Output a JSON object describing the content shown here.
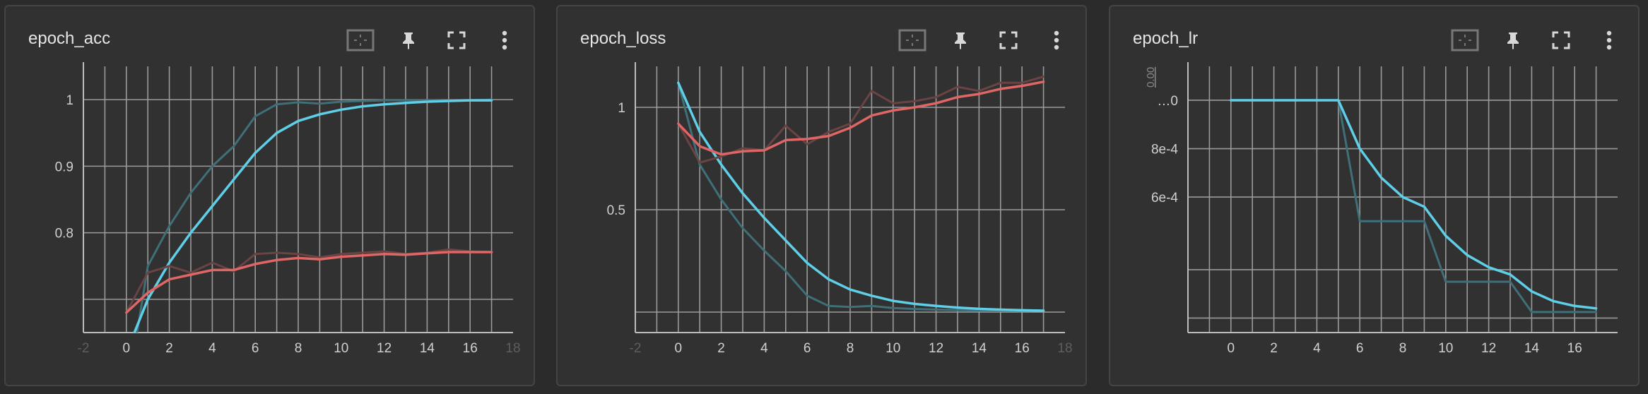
{
  "colors": {
    "background": "#2b2b2b",
    "card": "#313131",
    "grid": "#9a9a9a",
    "text": "#e6e6e6",
    "tick": "#d0d0d0",
    "train": "#5fcfe8",
    "train_raw": "#3f6f78",
    "validation": "#e06666",
    "validation_raw": "#6a4343"
  },
  "toolbar_icons": [
    "fit-domain-icon",
    "pin-icon",
    "fullscreen-icon",
    "more-vert-icon"
  ],
  "charts": [
    {
      "title": "epoch_acc",
      "chart_data": {
        "type": "line",
        "title": "epoch_acc",
        "xlabel": "",
        "ylabel": "",
        "xlim": [
          -2,
          18
        ],
        "ylim": [
          0.65,
          1.05
        ],
        "x_ticks": [
          {
            "v": -2,
            "label": "-2",
            "faint": true
          },
          {
            "v": 0,
            "label": "0"
          },
          {
            "v": 2,
            "label": "2"
          },
          {
            "v": 4,
            "label": "4"
          },
          {
            "v": 6,
            "label": "6"
          },
          {
            "v": 8,
            "label": "8"
          },
          {
            "v": 10,
            "label": "10"
          },
          {
            "v": 12,
            "label": "12"
          },
          {
            "v": 14,
            "label": "14"
          },
          {
            "v": 16,
            "label": "16"
          },
          {
            "v": 18,
            "label": "18",
            "faint": true
          }
        ],
        "y_ticks": [
          {
            "v": 0.7,
            "label": ""
          },
          {
            "v": 0.8,
            "label": "0.8"
          },
          {
            "v": 0.9,
            "label": "0.9"
          },
          {
            "v": 1.0,
            "label": "1"
          }
        ],
        "vgrid": [
          -1,
          0,
          1,
          2,
          3,
          4,
          5,
          6,
          7,
          8,
          9,
          10,
          11,
          12,
          13,
          14,
          15,
          16,
          17
        ],
        "grid": true,
        "series": [
          {
            "role": "train_raw",
            "x": [
              0,
              1,
              2,
              3,
              4,
              5,
              6,
              7,
              8,
              9,
              10,
              11,
              12,
              13,
              14,
              15,
              16,
              17
            ],
            "values": [
              0.55,
              0.75,
              0.81,
              0.86,
              0.9,
              0.93,
              0.975,
              0.993,
              0.996,
              0.994,
              0.997,
              0.998,
              0.999,
              0.999,
              0.999,
              0.999,
              0.999,
              1.0
            ]
          },
          {
            "role": "train",
            "x": [
              0,
              1,
              2,
              3,
              4,
              5,
              6,
              7,
              8,
              9,
              10,
              11,
              12,
              13,
              14,
              15,
              16,
              17
            ],
            "values": [
              0.62,
              0.7,
              0.755,
              0.8,
              0.84,
              0.88,
              0.92,
              0.95,
              0.968,
              0.978,
              0.985,
              0.99,
              0.993,
              0.995,
              0.997,
              0.998,
              0.999,
              0.999
            ]
          },
          {
            "role": "validation_raw",
            "x": [
              0,
              1,
              2,
              3,
              4,
              5,
              6,
              7,
              8,
              9,
              10,
              11,
              12,
              13,
              14,
              15,
              16,
              17
            ],
            "values": [
              0.68,
              0.74,
              0.75,
              0.74,
              0.755,
              0.742,
              0.768,
              0.77,
              0.768,
              0.763,
              0.768,
              0.77,
              0.772,
              0.768,
              0.77,
              0.775,
              0.772,
              0.771
            ]
          },
          {
            "role": "validation",
            "x": [
              0,
              1,
              2,
              3,
              4,
              5,
              6,
              7,
              8,
              9,
              10,
              11,
              12,
              13,
              14,
              15,
              16,
              17
            ],
            "values": [
              0.68,
              0.71,
              0.73,
              0.737,
              0.744,
              0.744,
              0.753,
              0.759,
              0.762,
              0.76,
              0.764,
              0.766,
              0.768,
              0.767,
              0.769,
              0.771,
              0.771,
              0.771
            ]
          }
        ]
      }
    },
    {
      "title": "epoch_loss",
      "chart_data": {
        "type": "line",
        "title": "epoch_loss",
        "xlabel": "",
        "ylabel": "",
        "xlim": [
          -2,
          18
        ],
        "ylim": [
          -0.1,
          1.2
        ],
        "x_ticks": [
          {
            "v": -2,
            "label": "-2",
            "faint": true
          },
          {
            "v": 0,
            "label": "0"
          },
          {
            "v": 2,
            "label": "2"
          },
          {
            "v": 4,
            "label": "4"
          },
          {
            "v": 6,
            "label": "6"
          },
          {
            "v": 8,
            "label": "8"
          },
          {
            "v": 10,
            "label": "10"
          },
          {
            "v": 12,
            "label": "12"
          },
          {
            "v": 14,
            "label": "14"
          },
          {
            "v": 16,
            "label": "16"
          },
          {
            "v": 18,
            "label": "18",
            "faint": true
          }
        ],
        "y_ticks": [
          {
            "v": 0.0,
            "label": ""
          },
          {
            "v": 0.5,
            "label": "0.5"
          },
          {
            "v": 1.0,
            "label": "1"
          }
        ],
        "vgrid": [
          -1,
          0,
          1,
          2,
          3,
          4,
          5,
          6,
          7,
          8,
          9,
          10,
          11,
          12,
          13,
          14,
          15,
          16,
          17
        ],
        "grid": true,
        "series": [
          {
            "role": "train_raw",
            "x": [
              0,
              1,
              2,
              3,
              4,
              5,
              6,
              7,
              8,
              9,
              10,
              11,
              12,
              13,
              14,
              15,
              16,
              17
            ],
            "values": [
              1.12,
              0.72,
              0.55,
              0.41,
              0.3,
              0.2,
              0.08,
              0.03,
              0.025,
              0.03,
              0.02,
              0.015,
              0.012,
              0.01,
              0.008,
              0.008,
              0.008,
              0.007
            ]
          },
          {
            "role": "train",
            "x": [
              0,
              1,
              2,
              3,
              4,
              5,
              6,
              7,
              8,
              9,
              10,
              11,
              12,
              13,
              14,
              15,
              16,
              17
            ],
            "values": [
              1.12,
              0.88,
              0.72,
              0.58,
              0.46,
              0.35,
              0.24,
              0.16,
              0.11,
              0.08,
              0.055,
              0.04,
              0.03,
              0.022,
              0.016,
              0.012,
              0.009,
              0.007
            ]
          },
          {
            "role": "validation_raw",
            "x": [
              0,
              1,
              2,
              3,
              4,
              5,
              6,
              7,
              8,
              9,
              10,
              11,
              12,
              13,
              14,
              15,
              16,
              17
            ],
            "values": [
              0.92,
              0.73,
              0.76,
              0.8,
              0.79,
              0.91,
              0.82,
              0.88,
              0.92,
              1.08,
              1.02,
              1.03,
              1.05,
              1.1,
              1.08,
              1.12,
              1.12,
              1.15
            ]
          },
          {
            "role": "validation",
            "x": [
              0,
              1,
              2,
              3,
              4,
              5,
              6,
              7,
              8,
              9,
              10,
              11,
              12,
              13,
              14,
              15,
              16,
              17
            ],
            "values": [
              0.92,
              0.81,
              0.77,
              0.785,
              0.79,
              0.84,
              0.845,
              0.86,
              0.9,
              0.96,
              0.985,
              1.0,
              1.02,
              1.05,
              1.065,
              1.09,
              1.105,
              1.125
            ]
          }
        ]
      }
    },
    {
      "title": "epoch_lr",
      "chart_data": {
        "type": "line",
        "title": "epoch_lr",
        "xlabel": "",
        "ylabel": "",
        "xlim": [
          -2,
          18
        ],
        "ylim": [
          4e-05,
          0.00114
        ],
        "x_ticks": [
          {
            "v": -2,
            "label": "",
            "faint": true
          },
          {
            "v": 0,
            "label": "0"
          },
          {
            "v": 2,
            "label": "2"
          },
          {
            "v": 4,
            "label": "4"
          },
          {
            "v": 6,
            "label": "6"
          },
          {
            "v": 8,
            "label": "8"
          },
          {
            "v": 10,
            "label": "10"
          },
          {
            "v": 12,
            "label": "12"
          },
          {
            "v": 14,
            "label": "14"
          },
          {
            "v": 16,
            "label": "16"
          },
          {
            "v": 18,
            "label": "",
            "faint": true
          }
        ],
        "y_ticks": [
          {
            "v": 0.0001,
            "label": ""
          },
          {
            "v": 0.0003,
            "label": ""
          },
          {
            "v": 0.0006,
            "label": "6e-4"
          },
          {
            "v": 0.0008,
            "label": "8e-4"
          },
          {
            "v": 0.001,
            "label": "…0"
          }
        ],
        "faint_ylabels": [
          "0.00"
        ],
        "vgrid": [
          -1,
          0,
          1,
          2,
          3,
          4,
          5,
          6,
          7,
          8,
          9,
          10,
          11,
          12,
          13,
          14,
          15,
          16,
          17
        ],
        "grid": true,
        "series": [
          {
            "role": "train_raw",
            "x": [
              0,
              1,
              2,
              3,
              4,
              5,
              6,
              7,
              8,
              9,
              10,
              11,
              12,
              13,
              14,
              15,
              16,
              17
            ],
            "values": [
              0.001,
              0.001,
              0.001,
              0.001,
              0.001,
              0.001,
              0.0005,
              0.0005,
              0.0005,
              0.0005,
              0.00025,
              0.00025,
              0.00025,
              0.00025,
              0.000125,
              0.000125,
              0.000125,
              0.000125
            ]
          },
          {
            "role": "train",
            "x": [
              0,
              1,
              2,
              3,
              4,
              5,
              6,
              7,
              8,
              9,
              10,
              11,
              12,
              13,
              14,
              15,
              16,
              17
            ],
            "values": [
              0.001,
              0.001,
              0.001,
              0.001,
              0.001,
              0.001,
              0.0008,
              0.00068,
              0.0006,
              0.00056,
              0.00044,
              0.00036,
              0.00031,
              0.00028,
              0.00021,
              0.00017,
              0.00015,
              0.00014
            ]
          }
        ]
      }
    }
  ]
}
